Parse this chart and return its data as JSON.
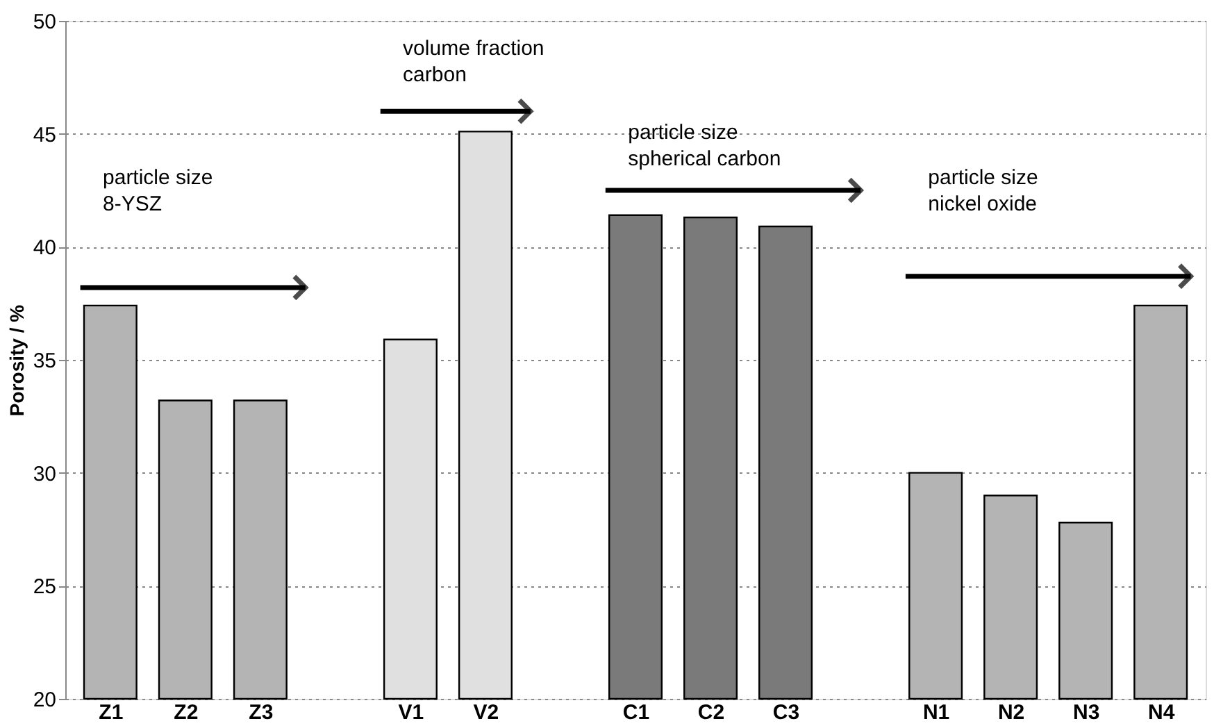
{
  "chart_data": {
    "type": "bar",
    "ylabel": "Porosity / %",
    "categories": [
      "Z1",
      "Z2",
      "Z3",
      null,
      "V1",
      "V2",
      null,
      "C1",
      "C2",
      "C3",
      null,
      "N1",
      "N2",
      "N3",
      "N4"
    ],
    "values": [
      37.4,
      33.2,
      33.2,
      null,
      35.9,
      45.1,
      null,
      41.4,
      41.3,
      40.9,
      null,
      30.0,
      29.0,
      27.8,
      37.4
    ],
    "colors": [
      "#b4b4b4",
      "#b4b4b4",
      "#b4b4b4",
      null,
      "#e0e0e0",
      "#e0e0e0",
      null,
      "#7a7a7a",
      "#7a7a7a",
      "#7a7a7a",
      null,
      "#b4b4b4",
      "#b4b4b4",
      "#b4b4b4",
      "#b4b4b4"
    ],
    "ylim": [
      20,
      50
    ],
    "yticks": [
      20,
      25,
      30,
      35,
      40,
      45,
      50
    ],
    "grid": "y",
    "annotations": [
      "particle size\n8-YSZ",
      "volume fraction\ncarbon",
      "particle size\nspherical carbon",
      "particle size\nnickel oxide"
    ]
  }
}
